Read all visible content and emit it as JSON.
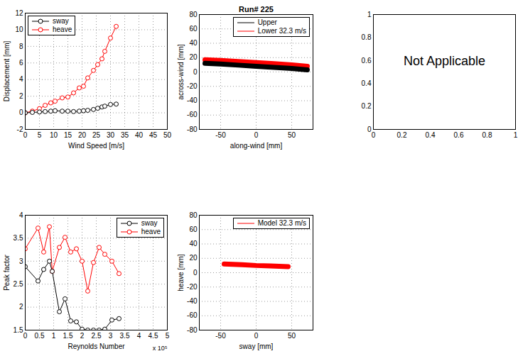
{
  "chart_data": [
    {
      "type": "line",
      "x_label": "Wind Speed [m/s]",
      "y_label": "Displacement [mm]",
      "x": [
        0,
        2.5,
        5,
        7,
        9,
        10.5,
        13,
        15,
        17,
        19,
        20.5,
        22,
        24,
        25.5,
        27,
        28,
        30,
        32
      ],
      "series": [
        {
          "name": "sway",
          "color": "#000000",
          "marker": "o",
          "line_style": "solid",
          "values": [
            0,
            0.05,
            0.1,
            0.15,
            0.2,
            0.25,
            0.2,
            0.2,
            0.15,
            0.2,
            0.25,
            0.3,
            0.4,
            0.55,
            0.7,
            0.8,
            1.0,
            1.05
          ]
        },
        {
          "name": "heave",
          "color": "#ff0000",
          "marker": "o",
          "line_style": "solid",
          "values": [
            0,
            0.2,
            0.5,
            0.9,
            1.2,
            1.4,
            1.8,
            1.9,
            2.4,
            3.0,
            3.2,
            4.2,
            5.1,
            5.8,
            6.5,
            7.4,
            9.0,
            10.4
          ]
        }
      ],
      "xlim": [
        0,
        50
      ],
      "ylim": [
        -2,
        12
      ],
      "xticks": [
        0,
        5,
        10,
        15,
        20,
        25,
        30,
        35,
        40,
        45,
        50
      ],
      "yticks": [
        -2,
        0,
        2,
        4,
        6,
        8,
        10,
        12
      ],
      "grid": true,
      "legend": "upper left"
    },
    {
      "type": "line",
      "title": "Run# 225",
      "x_label": "along-wind [mm]",
      "y_label": "across-wind [mm]",
      "series": [
        {
          "name": "Upper",
          "color": "#000000",
          "marker": "none",
          "line_style": "solid",
          "x": [
            -72,
            -50,
            -25,
            0,
            25,
            50,
            72
          ],
          "values": [
            12,
            11,
            9.5,
            8,
            6.5,
            5,
            3
          ]
        },
        {
          "name": "Lower 32.3 m/s",
          "color": "#ff0000",
          "marker": "none",
          "line_style": "solid",
          "x": [
            -72,
            -50,
            -25,
            0,
            25,
            50,
            72
          ],
          "values": [
            17,
            16,
            14.5,
            13,
            11.5,
            10,
            8
          ]
        }
      ],
      "xlim": [
        -80,
        80
      ],
      "ylim": [
        -80,
        80
      ],
      "xticks": [
        -50,
        0,
        50
      ],
      "yticks": [
        -80,
        -60,
        -40,
        -20,
        0,
        20,
        40,
        60,
        80
      ],
      "grid": true,
      "legend": "upper right"
    },
    {
      "type": "empty",
      "annotations": [
        "Not Applicable"
      ],
      "xlim": [
        0,
        1
      ],
      "ylim": [
        0,
        1
      ],
      "xticks": [
        0,
        0.2,
        0.4,
        0.6,
        0.8,
        1
      ],
      "yticks": [
        0,
        0.2,
        0.4,
        0.6,
        0.8,
        1
      ],
      "grid": false
    },
    {
      "type": "line",
      "x_label": "Reynolds Number",
      "y_label": "Peak factor",
      "annotations": [
        "x 10⁵"
      ],
      "x": [
        0,
        0.45,
        0.65,
        0.85,
        0.95,
        1.2,
        1.4,
        1.6,
        1.8,
        2.0,
        2.2,
        2.4,
        2.6,
        2.8,
        3.05,
        3.3
      ],
      "series": [
        {
          "name": "sway",
          "color": "#000000",
          "marker": "o",
          "line_style": "solid",
          "values": [
            2.88,
            2.57,
            2.82,
            3.0,
            2.78,
            1.9,
            2.18,
            1.7,
            1.68,
            1.52,
            1.5,
            1.5,
            1.5,
            1.52,
            1.72,
            1.75
          ]
        },
        {
          "name": "heave",
          "color": "#ff0000",
          "marker": "o",
          "line_style": "solid",
          "values": [
            3.27,
            3.72,
            3.2,
            3.75,
            2.78,
            3.3,
            3.52,
            3.2,
            3.27,
            3.0,
            2.35,
            2.97,
            3.3,
            3.15,
            3.0,
            2.73
          ]
        }
      ],
      "xlim": [
        0,
        5
      ],
      "ylim": [
        1.5,
        4
      ],
      "xticks": [
        0,
        0.5,
        1,
        1.5,
        2,
        2.5,
        3,
        3.5,
        4,
        4.5,
        5
      ],
      "yticks": [
        1.5,
        2,
        2.5,
        3,
        3.5,
        4
      ],
      "grid": true,
      "legend": "upper right"
    },
    {
      "type": "line",
      "x_label": "sway [mm]",
      "y_label": "heave [mm]",
      "series": [
        {
          "name": "Model 32.3 m/s",
          "color": "#ff0000",
          "marker": "none",
          "line_style": "solid",
          "x": [
            -45,
            -20,
            0,
            20,
            45
          ],
          "values": [
            12,
            11,
            10,
            9.5,
            8.5
          ]
        }
      ],
      "xlim": [
        -80,
        80
      ],
      "ylim": [
        -80,
        80
      ],
      "xticks": [
        -50,
        0,
        50
      ],
      "yticks": [
        -80,
        -60,
        -40,
        -20,
        0,
        20,
        40,
        60,
        80
      ],
      "grid": true,
      "legend": "upper right"
    }
  ]
}
